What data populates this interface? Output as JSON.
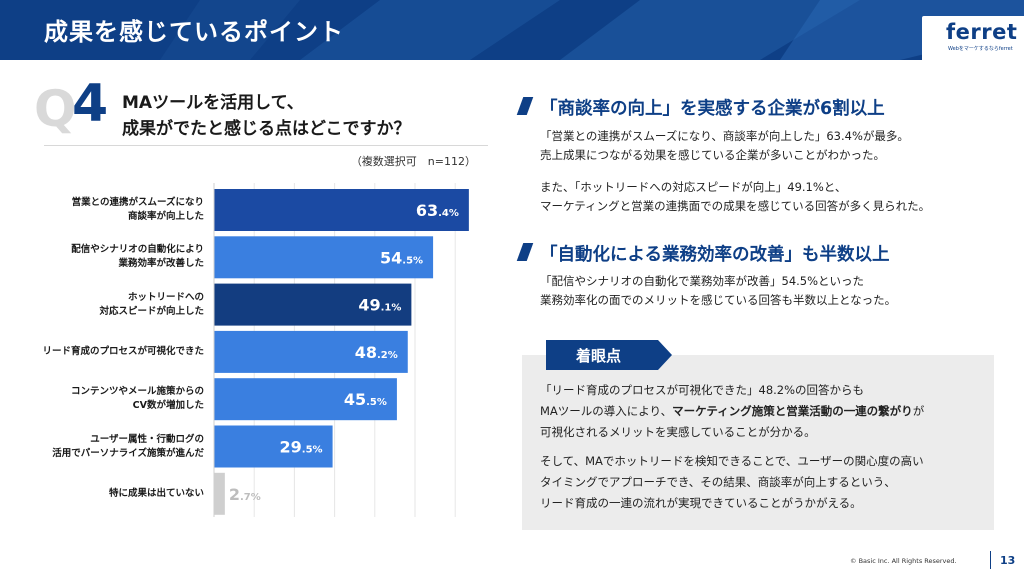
{
  "header": {
    "title": "成果を感じているポイント",
    "logo_word": "ferret",
    "logo_tagline": "Webをマーケするならferret"
  },
  "question": {
    "q_letter": "Q",
    "q_number": "4",
    "line1": "MAツールを活用して、",
    "line2": "成果がでたと感じる点はどこですか？",
    "note": "（複数選択可　n=112）"
  },
  "chart_data": {
    "type": "bar",
    "orientation": "horizontal",
    "categories": [
      [
        "営業との連携がスムーズになり",
        "商談率が向上した"
      ],
      [
        "配信やシナリオの自動化により",
        "業務効率が改善した"
      ],
      [
        "ホットリードへの",
        "対応スピードが向上した"
      ],
      [
        "リード育成のプロセスが可視化できた"
      ],
      [
        "コンテンツやメール施策からの",
        "CV数が増加した"
      ],
      [
        "ユーザー属性・行動ログの",
        "活用でパーソナライズ施策が進んだ"
      ],
      [
        "特に成果は出ていない"
      ]
    ],
    "values": [
      63.4,
      54.5,
      49.1,
      48.2,
      45.5,
      29.5,
      2.7
    ],
    "value_labels": [
      {
        "int": "63",
        "dec": ".4%"
      },
      {
        "int": "54",
        "dec": ".5%"
      },
      {
        "int": "49",
        "dec": ".1%"
      },
      {
        "int": "48",
        "dec": ".2%"
      },
      {
        "int": "45",
        "dec": ".5%"
      },
      {
        "int": "29",
        "dec": ".5%"
      },
      {
        "int": "2",
        "dec": ".7%"
      }
    ],
    "bar_colors": [
      "#1b4aa3",
      "#3a7fe0",
      "#133d80",
      "#3a7fe0",
      "#3a7fe0",
      "#3a7fe0",
      "#cfcfcf"
    ],
    "xlim": [
      0,
      70
    ],
    "grid": true
  },
  "sections": [
    {
      "heading": "「商談率の向上」を実感する企業が6割以上",
      "paragraphs": [
        [
          "「営業との連携がスムーズになり、商談率が向上した」63.4%が最多。",
          "売上成果につながる効果を感じている企業が多いことがわかった。"
        ],
        [
          "また、「ホットリードへの対応スピードが向上」49.1%と、",
          "マーケティングと営業の連携面での成果を感じている回答が多く見られた。"
        ]
      ]
    },
    {
      "heading": "「自動化による業務効率の改善」も半数以上",
      "paragraphs": [
        [
          "「配信やシナリオの自動化で業務効率が改善」54.5%といった",
          "業務効率化の面でのメリットを感じている回答も半数以上となった。"
        ]
      ]
    }
  ],
  "highlight": {
    "tag": "着眼点",
    "p1_line1": "「リード育成のプロセスが可視化できた」48.2%の回答からも",
    "p1_line2_pre": "MAツールの導入により、",
    "p1_line2_bold": "マーケティング施策と営業活動の一連の繋がり",
    "p1_line2_post": "が",
    "p1_line3": "可視化されるメリットを実感していることが分かる。",
    "p2_line1": "そして、MAでホットリードを検知できることで、ユーザーの関心度の高い",
    "p2_line2": "タイミングでアプローチでき、その結果、商談率が向上するという、",
    "p2_line3": "リード育成の一連の流れが実現できていることがうかがえる。"
  },
  "footer": {
    "copyright": "© Basic Inc. All Rights Reserved.",
    "page": "13"
  }
}
